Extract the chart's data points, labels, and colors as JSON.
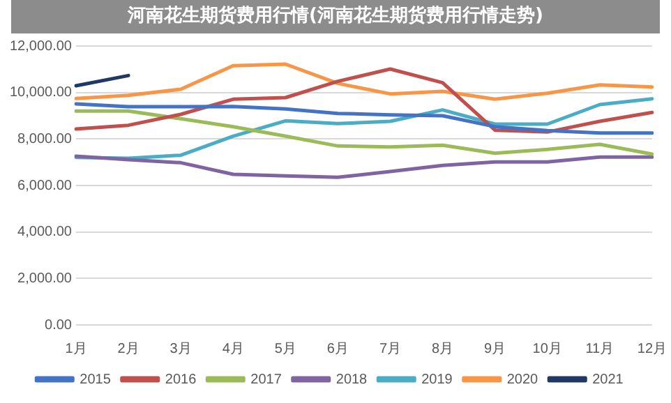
{
  "chart_data": {
    "type": "line",
    "title": "河南花生期货费用行情(河南花生期货费用行情走势)",
    "categories": [
      "1月",
      "2月",
      "3月",
      "4月",
      "5月",
      "6月",
      "7月",
      "8月",
      "9月",
      "10月",
      "11月",
      "12月"
    ],
    "series": [
      {
        "name": "2015",
        "color": "#4472c4",
        "values": [
          9510,
          9390,
          9390,
          9400,
          9290,
          9100,
          9040,
          9000,
          8530,
          8360,
          8260,
          8260
        ]
      },
      {
        "name": "2016",
        "color": "#c0504d",
        "values": [
          8430,
          8590,
          9060,
          9710,
          9780,
          10480,
          11010,
          10420,
          8380,
          8300,
          8760,
          9140
        ]
      },
      {
        "name": "2017",
        "color": "#9bbb59",
        "values": [
          9200,
          9200,
          8870,
          8530,
          8120,
          7700,
          7660,
          7730,
          7390,
          7550,
          7770,
          7350
        ]
      },
      {
        "name": "2018",
        "color": "#8064a2",
        "values": [
          7260,
          7110,
          6980,
          6480,
          6410,
          6350,
          6600,
          6860,
          7010,
          7010,
          7220,
          7220
        ]
      },
      {
        "name": "2019",
        "color": "#4bacc6",
        "values": [
          7210,
          7170,
          7300,
          8120,
          8780,
          8660,
          8760,
          9250,
          8640,
          8640,
          9480,
          9730
        ]
      },
      {
        "name": "2020",
        "color": "#f79646",
        "values": [
          9740,
          9880,
          10140,
          11150,
          11220,
          10390,
          9940,
          10050,
          9710,
          9970,
          10330,
          10240
        ]
      },
      {
        "name": "2021",
        "color": "#1f3864",
        "values": [
          10290,
          10730,
          null,
          null,
          null,
          null,
          null,
          null,
          null,
          null,
          null,
          null
        ]
      }
    ],
    "ylim": [
      0,
      12000
    ],
    "yticks": [
      {
        "value": 0,
        "label": "0.00"
      },
      {
        "value": 2000,
        "label": "2,000.00"
      },
      {
        "value": 4000,
        "label": "4,000.00"
      },
      {
        "value": 6000,
        "label": "6,000.00"
      },
      {
        "value": 8000,
        "label": "8,000.00"
      },
      {
        "value": 10000,
        "label": "10,000.00"
      },
      {
        "value": 12000,
        "label": "12,000.00"
      }
    ],
    "grid": "y",
    "legend": "bottom",
    "marker": "none",
    "line_style": "solid"
  }
}
